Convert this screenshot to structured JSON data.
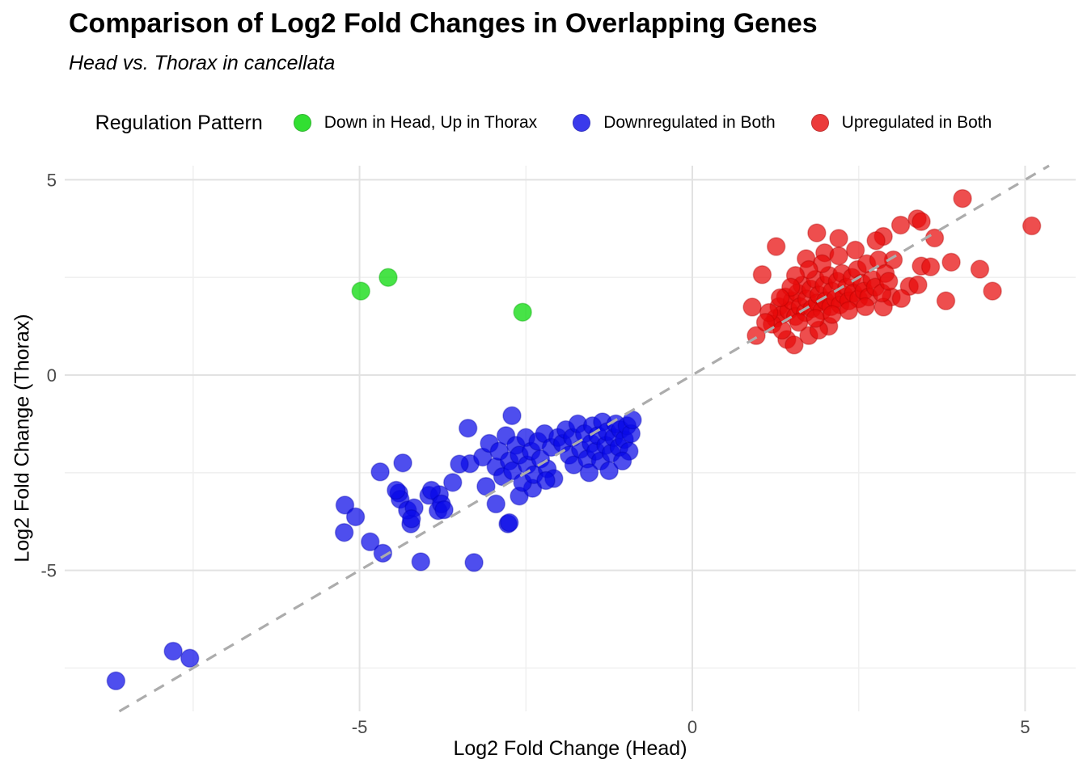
{
  "title": "Comparison of Log2 Fold Changes in Overlapping Genes",
  "subtitle": "Head vs. Thorax in cancellata",
  "legend": {
    "title": "Regulation Pattern",
    "items": [
      {
        "label": "Down in Head, Up in Thorax",
        "color": "#00d800",
        "stroke": "#00a000"
      },
      {
        "label": "Downregulated in Both",
        "color": "#0a0ae8",
        "stroke": "#0000b0"
      },
      {
        "label": "Upregulated in Both",
        "color": "#e80a0a",
        "stroke": "#b00000"
      }
    ]
  },
  "chart_data": {
    "type": "scatter",
    "title": "Comparison of Log2 Fold Changes in Overlapping Genes",
    "subtitle": "Head vs. Thorax in cancellata",
    "xlabel": "Log2 Fold Change (Head)",
    "ylabel": "Log2 Fold Change (Thorax)",
    "xlim": [
      -9.43,
      5.76
    ],
    "ylim": [
      -8.61,
      5.36
    ],
    "x_ticks": [
      -5,
      0,
      5
    ],
    "y_ticks": [
      -5,
      0,
      5
    ],
    "x_minor": [
      -7.5,
      -2.5,
      2.5
    ],
    "y_minor": [
      -7.5,
      -2.5,
      2.5
    ],
    "grid": "on",
    "legend_position": "top",
    "identity_line": {
      "equation": "y = x",
      "style": "dashed",
      "color": "#acacac"
    },
    "point_radius": 11,
    "series": [
      {
        "name": "Down in Head, Up in Thorax",
        "color": "#00d800",
        "stroke": "#00a000",
        "points": [
          [
            -4.98,
            2.15
          ],
          [
            -4.57,
            2.5
          ],
          [
            -2.55,
            1.61
          ]
        ]
      },
      {
        "name": "Downregulated in Both",
        "color": "#0a0ae8",
        "stroke": "#0000b0",
        "points": [
          [
            -8.66,
            -7.83
          ],
          [
            -7.8,
            -7.07
          ],
          [
            -7.55,
            -7.25
          ],
          [
            -5.22,
            -3.33
          ],
          [
            -5.06,
            -3.63
          ],
          [
            -5.23,
            -4.03
          ],
          [
            -4.84,
            -4.27
          ],
          [
            -4.65,
            -4.56
          ],
          [
            -4.08,
            -4.78
          ],
          [
            -3.28,
            -4.8
          ],
          [
            -4.69,
            -2.48
          ],
          [
            -4.35,
            -2.25
          ],
          [
            -4.41,
            -3.02
          ],
          [
            -4.39,
            -3.18
          ],
          [
            -4.23,
            -3.81
          ],
          [
            -4.28,
            -3.46
          ],
          [
            -4.45,
            -2.95
          ],
          [
            -3.96,
            -3.08
          ],
          [
            -3.8,
            -3.06
          ],
          [
            -3.82,
            -3.47
          ],
          [
            -2.95,
            -3.3
          ],
          [
            -2.77,
            -3.81
          ],
          [
            -3.37,
            -1.36
          ],
          [
            -3.34,
            -2.27
          ],
          [
            -3.92,
            -2.95
          ],
          [
            -3.6,
            -2.75
          ],
          [
            -4.18,
            -3.4
          ],
          [
            -4.22,
            -3.68
          ],
          [
            -3.77,
            -3.3
          ],
          [
            -3.73,
            -3.45
          ],
          [
            -2.71,
            -1.04
          ],
          [
            -3.5,
            -2.28
          ],
          [
            -2.75,
            -3.78
          ],
          [
            -2.6,
            -3.1
          ],
          [
            -2.4,
            -2.9
          ],
          [
            -3.1,
            -2.85
          ],
          [
            -3.15,
            -2.1
          ],
          [
            -3.05,
            -1.75
          ],
          [
            -2.95,
            -2.35
          ],
          [
            -2.9,
            -1.95
          ],
          [
            -2.85,
            -2.6
          ],
          [
            -2.8,
            -1.55
          ],
          [
            -2.75,
            -2.2
          ],
          [
            -2.7,
            -2.45
          ],
          [
            -2.65,
            -1.8
          ],
          [
            -2.6,
            -2.05
          ],
          [
            -2.55,
            -2.75
          ],
          [
            -2.5,
            -1.6
          ],
          [
            -2.48,
            -2.3
          ],
          [
            -2.42,
            -1.95
          ],
          [
            -2.38,
            -2.55
          ],
          [
            -2.32,
            -1.7
          ],
          [
            -2.28,
            -2.15
          ],
          [
            -2.22,
            -1.5
          ],
          [
            -2.18,
            -2.4
          ],
          [
            -2.12,
            -1.85
          ],
          [
            -2.08,
            -2.65
          ],
          [
            -2.02,
            -1.6
          ],
          [
            -2.2,
            -2.7
          ],
          [
            -1.95,
            -1.75
          ],
          [
            -1.9,
            -1.4
          ],
          [
            -1.85,
            -2.05
          ],
          [
            -1.8,
            -1.6
          ],
          [
            -1.78,
            -2.3
          ],
          [
            -1.72,
            -1.25
          ],
          [
            -1.68,
            -1.9
          ],
          [
            -1.62,
            -1.5
          ],
          [
            -1.58,
            -2.15
          ],
          [
            -1.52,
            -1.75
          ],
          [
            -1.5,
            -1.3
          ],
          [
            -1.45,
            -1.95
          ],
          [
            -1.42,
            -1.55
          ],
          [
            -1.38,
            -2.2
          ],
          [
            -1.35,
            -1.2
          ],
          [
            -1.3,
            -1.8
          ],
          [
            -1.28,
            -1.45
          ],
          [
            -1.22,
            -2.0
          ],
          [
            -1.18,
            -1.6
          ],
          [
            -1.15,
            -1.25
          ],
          [
            -1.1,
            -1.85
          ],
          [
            -1.08,
            -1.4
          ],
          [
            -1.02,
            -1.65
          ],
          [
            -0.98,
            -1.3
          ],
          [
            -0.95,
            -1.95
          ],
          [
            -0.92,
            -1.5
          ],
          [
            -1.25,
            -2.45
          ],
          [
            -1.55,
            -2.5
          ],
          [
            -1.05,
            -2.2
          ],
          [
            -0.9,
            -1.15
          ]
        ]
      },
      {
        "name": "Upregulated in Both",
        "color": "#e80a0a",
        "stroke": "#b00000",
        "points": [
          [
            4.06,
            4.52
          ],
          [
            3.13,
            3.84
          ],
          [
            3.38,
            4.0
          ],
          [
            3.44,
            3.93
          ],
          [
            3.64,
            3.51
          ],
          [
            5.1,
            3.82
          ],
          [
            3.02,
            2.95
          ],
          [
            2.87,
            3.55
          ],
          [
            3.44,
            2.79
          ],
          [
            3.58,
            2.77
          ],
          [
            3.89,
            2.89
          ],
          [
            4.32,
            2.71
          ],
          [
            3.26,
            2.27
          ],
          [
            3.39,
            2.31
          ],
          [
            2.99,
            2.0
          ],
          [
            3.14,
            1.96
          ],
          [
            4.51,
            2.15
          ],
          [
            3.81,
            1.9
          ],
          [
            2.87,
            1.74
          ],
          [
            0.96,
            1.01
          ],
          [
            1.42,
            0.91
          ],
          [
            1.53,
            0.77
          ],
          [
            0.9,
            1.74
          ],
          [
            1.87,
            3.64
          ],
          [
            2.2,
            3.5
          ],
          [
            2.76,
            3.44
          ],
          [
            1.71,
            2.98
          ],
          [
            1.99,
            3.13
          ],
          [
            1.75,
            1.01
          ],
          [
            2.05,
            1.25
          ],
          [
            1.9,
            1.15
          ],
          [
            1.26,
            3.29
          ],
          [
            1.05,
            2.57
          ],
          [
            1.25,
            1.45
          ],
          [
            1.3,
            1.75
          ],
          [
            1.35,
            1.55
          ],
          [
            1.4,
            2.0
          ],
          [
            1.45,
            1.65
          ],
          [
            1.5,
            1.9
          ],
          [
            1.55,
            1.5
          ],
          [
            1.58,
            2.1
          ],
          [
            1.62,
            1.75
          ],
          [
            1.65,
            2.3
          ],
          [
            1.7,
            1.6
          ],
          [
            1.72,
            1.95
          ],
          [
            1.78,
            2.2
          ],
          [
            1.8,
            1.7
          ],
          [
            1.85,
            2.45
          ],
          [
            1.88,
            1.85
          ],
          [
            1.9,
            2.05
          ],
          [
            1.95,
            1.65
          ],
          [
            1.98,
            2.3
          ],
          [
            2.0,
            1.9
          ],
          [
            2.05,
            2.55
          ],
          [
            2.08,
            1.75
          ],
          [
            2.1,
            2.15
          ],
          [
            2.15,
            1.95
          ],
          [
            2.18,
            2.4
          ],
          [
            2.22,
            1.8
          ],
          [
            2.25,
            2.6
          ],
          [
            2.28,
            2.05
          ],
          [
            2.32,
            2.25
          ],
          [
            2.35,
            1.9
          ],
          [
            2.4,
            2.5
          ],
          [
            2.42,
            2.1
          ],
          [
            2.48,
            2.7
          ],
          [
            2.5,
            1.95
          ],
          [
            2.55,
            2.35
          ],
          [
            2.58,
            2.15
          ],
          [
            2.62,
            2.85
          ],
          [
            2.65,
            2.0
          ],
          [
            2.7,
            2.45
          ],
          [
            2.75,
            2.25
          ],
          [
            2.8,
            2.95
          ],
          [
            2.85,
            2.1
          ],
          [
            2.9,
            2.6
          ],
          [
            2.95,
            2.4
          ],
          [
            1.2,
            1.3
          ],
          [
            1.35,
            1.15
          ],
          [
            1.6,
            1.35
          ],
          [
            1.85,
            1.45
          ],
          [
            2.1,
            1.55
          ],
          [
            2.35,
            1.65
          ],
          [
            2.6,
            1.75
          ],
          [
            1.15,
            1.6
          ],
          [
            1.1,
            1.35
          ],
          [
            2.2,
            3.05
          ],
          [
            2.45,
            3.2
          ],
          [
            1.95,
            2.85
          ],
          [
            1.75,
            2.7
          ],
          [
            1.55,
            2.55
          ],
          [
            1.48,
            2.25
          ],
          [
            1.32,
            1.98
          ]
        ]
      }
    ]
  }
}
